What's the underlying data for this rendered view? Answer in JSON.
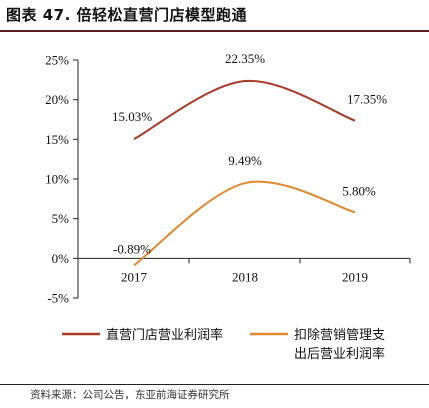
{
  "title": "图表 47. 倍轻松直营门店模型跑通",
  "source": "资料来源：公司公告，东亚前海证券研究所",
  "chart_data": {
    "type": "line",
    "categories": [
      "2017",
      "2018",
      "2019"
    ],
    "ylim": [
      -5,
      25
    ],
    "yticks": [
      "25%",
      "20%",
      "15%",
      "10%",
      "5%",
      "0%",
      "-5%"
    ],
    "ytick_values": [
      25,
      20,
      15,
      10,
      5,
      0,
      -5
    ],
    "grid": false,
    "legend_placement": "bottom",
    "series": [
      {
        "name": "直营门店营业利润率",
        "values": [
          15.03,
          22.35,
          17.35
        ],
        "labels": [
          "15.03%",
          "22.35%",
          "17.35%"
        ],
        "color": "#a83a28"
      },
      {
        "name_lines": [
          "扣除营销管理支",
          "出后营业利润率"
        ],
        "values": [
          -0.89,
          9.49,
          5.8
        ],
        "labels": [
          "-0.89%",
          "9.49%",
          "5.80%"
        ],
        "color": "#e0892e"
      }
    ]
  }
}
